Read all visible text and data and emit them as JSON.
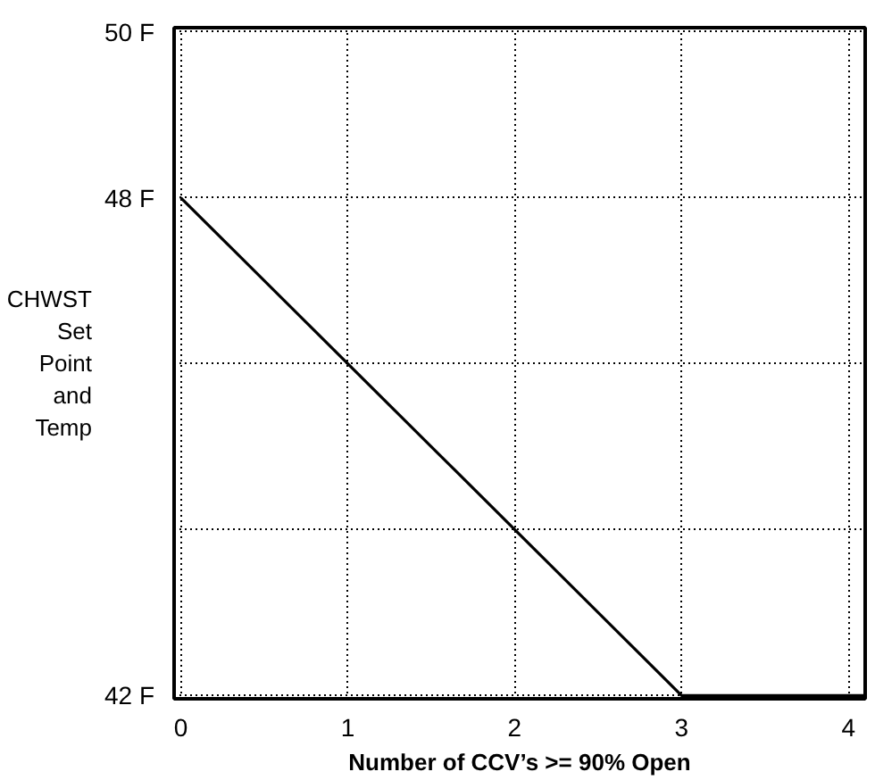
{
  "chart_data": {
    "type": "line",
    "xlabel": "Number of CCV’s >= 90% Open",
    "ylabel": "CHWST Set Point and Temp",
    "x": [
      0,
      3,
      4.1
    ],
    "values": [
      48,
      42,
      42
    ],
    "color": "#000000",
    "xlim": [
      -0.04,
      4.1
    ],
    "xticks": [
      0,
      1,
      2,
      3,
      4
    ],
    "ylim": [
      41.96,
      50.05
    ],
    "yticks": [
      {
        "value": 42,
        "label": "42 F"
      },
      {
        "value": 44,
        "label": null
      },
      {
        "value": 46,
        "label": null
      },
      {
        "value": 48,
        "label": "48 F"
      },
      {
        "value": 50,
        "label": "50 F"
      }
    ],
    "grid": true,
    "marker": "none",
    "line_style": "solid"
  }
}
